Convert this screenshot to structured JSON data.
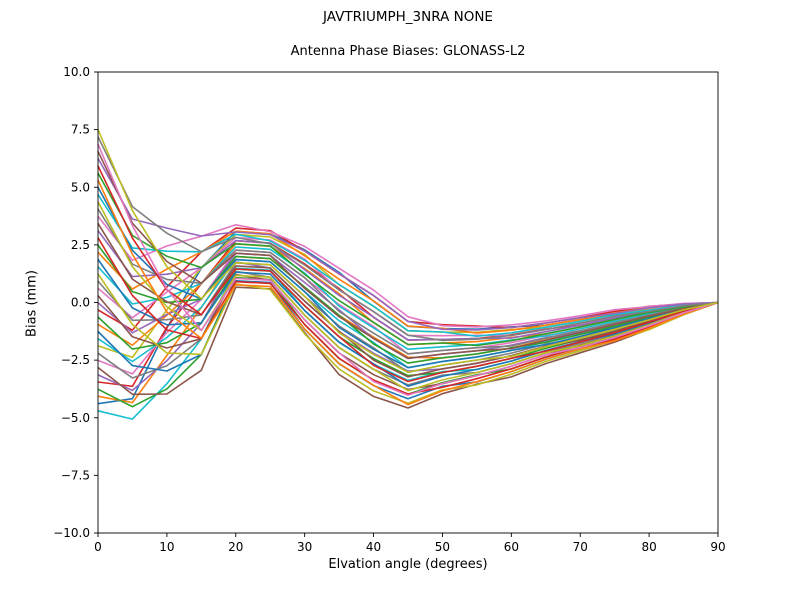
{
  "figure": {
    "title": "JAVTRIUMPH_3NRA NONE",
    "subtitle": "Antenna Phase Biases: GLONASS-L2"
  },
  "chart_data": {
    "type": "line",
    "title": "JAVTRIUMPH_3NRA NONE",
    "axes_title": "Antenna Phase Biases: GLONASS-L2",
    "xlabel": "Elvation angle (degrees)",
    "ylabel": "Bias (mm)",
    "xlim": [
      0,
      90
    ],
    "ylim": [
      -10,
      10
    ],
    "grid": false,
    "legend": "none",
    "xticks": [
      0,
      10,
      20,
      30,
      40,
      50,
      60,
      70,
      80,
      90
    ],
    "xtick_labels": [
      "0",
      "10",
      "20",
      "30",
      "40",
      "50",
      "60",
      "70",
      "80",
      "90"
    ],
    "yticks": [
      10.0,
      7.5,
      5.0,
      2.5,
      0.0,
      -2.5,
      -5.0,
      -7.5,
      -10.0
    ],
    "ytick_labels": [
      "10.0",
      "7.5",
      "5.0",
      "2.5",
      "0.0",
      "−2.5",
      "−5.0",
      "−7.5",
      "−10.0"
    ],
    "x": [
      0,
      5,
      10,
      15,
      20,
      25,
      30,
      35,
      40,
      45,
      50,
      55,
      60,
      65,
      70,
      75,
      80,
      85,
      90
    ],
    "envelope_low": [
      -4.7,
      -5.35,
      -4.7,
      -3.2,
      0.6,
      0.5,
      -1.5,
      -3.1,
      -4.1,
      -4.65,
      -4.05,
      -3.65,
      -3.2,
      -2.65,
      -2.2,
      -1.75,
      -1.2,
      -0.55,
      0.0
    ],
    "envelope_high": [
      7.5,
      4.6,
      3.9,
      3.2,
      3.3,
      3.15,
      2.5,
      1.5,
      0.5,
      -0.7,
      -0.9,
      -1.0,
      -0.95,
      -0.8,
      -0.6,
      -0.35,
      -0.15,
      -0.03,
      0.0
    ],
    "mix": [
      0,
      0.1,
      0.45,
      0.8,
      1,
      1,
      1,
      1,
      1,
      1,
      1,
      1,
      1,
      1,
      1,
      1,
      1,
      1,
      1
    ],
    "series": [
      {
        "start": -4.7,
        "band_pos": 0.31
      },
      {
        "start": -4.39,
        "band_pos": 0.928
      },
      {
        "start": -4.07,
        "band_pos": 0.546
      },
      {
        "start": -3.76,
        "band_pos": 0.164
      },
      {
        "start": -3.45,
        "band_pos": 0.782
      },
      {
        "start": -3.14,
        "band_pos": 0.4
      },
      {
        "start": -2.82,
        "band_pos": 0.018
      },
      {
        "start": -2.51,
        "band_pos": 0.636
      },
      {
        "start": -2.2,
        "band_pos": 0.254
      },
      {
        "start": -1.88,
        "band_pos": 0.872
      },
      {
        "start": -1.57,
        "band_pos": 0.49
      },
      {
        "start": -1.26,
        "band_pos": 0.108
      },
      {
        "start": -0.95,
        "band_pos": 0.726
      },
      {
        "start": -0.63,
        "band_pos": 0.344
      },
      {
        "start": -0.32,
        "band_pos": 0.962
      },
      {
        "start": -0.01,
        "band_pos": 0.58
      },
      {
        "start": 0.3,
        "band_pos": 0.198
      },
      {
        "start": 0.62,
        "band_pos": 0.816
      },
      {
        "start": 0.93,
        "band_pos": 0.434
      },
      {
        "start": 1.24,
        "band_pos": 0.052
      },
      {
        "start": 1.55,
        "band_pos": 0.67
      },
      {
        "start": 1.87,
        "band_pos": 0.288
      },
      {
        "start": 2.18,
        "band_pos": 0.906
      },
      {
        "start": 2.49,
        "band_pos": 0.524
      },
      {
        "start": 2.81,
        "band_pos": 0.142
      },
      {
        "start": 3.12,
        "band_pos": 0.76
      },
      {
        "start": 3.43,
        "band_pos": 0.378
      },
      {
        "start": 3.74,
        "band_pos": 0.996
      },
      {
        "start": 4.06,
        "band_pos": 0.614
      },
      {
        "start": 4.37,
        "band_pos": 0.232
      },
      {
        "start": 4.68,
        "band_pos": 0.85
      },
      {
        "start": 5.0,
        "band_pos": 0.468
      },
      {
        "start": 5.31,
        "band_pos": 0.086
      },
      {
        "start": 5.62,
        "band_pos": 0.704
      },
      {
        "start": 5.93,
        "band_pos": 0.322
      },
      {
        "start": 6.25,
        "band_pos": 0.94
      },
      {
        "start": 6.56,
        "band_pos": 0.558
      },
      {
        "start": 6.87,
        "band_pos": 0.176
      },
      {
        "start": 7.19,
        "band_pos": 0.794
      },
      {
        "start": 7.5,
        "band_pos": 0.412
      }
    ],
    "palette": [
      "#1f77b4",
      "#ff7f0e",
      "#2ca02c",
      "#d62728",
      "#9467bd",
      "#8c564b",
      "#e377c2",
      "#7f7f7f",
      "#bcbd22",
      "#17becf"
    ],
    "palette_offset": 9,
    "axis_color": "#000000",
    "background_color": "#ffffff"
  }
}
